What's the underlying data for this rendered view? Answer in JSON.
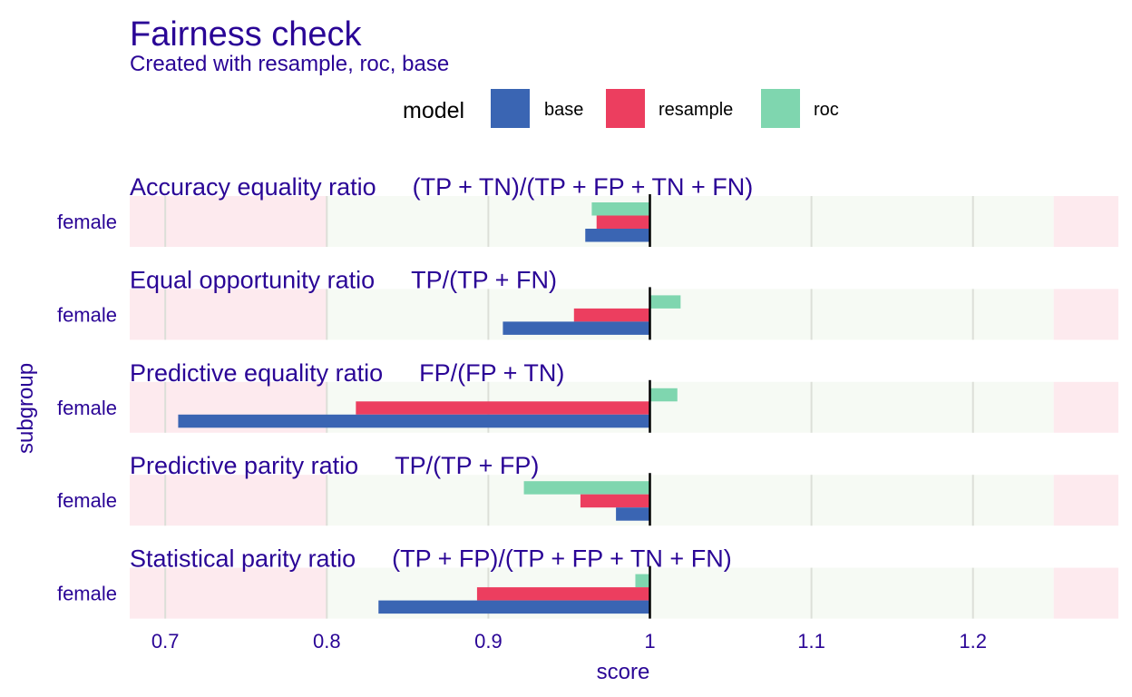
{
  "chart_data": {
    "type": "bar",
    "orientation": "horizontal",
    "title": "Fairness check",
    "subtitle": "Created with resample, roc, base",
    "xlabel": "score",
    "ylabel": "subgroup",
    "xlim": [
      0.678,
      1.29
    ],
    "xticks": [
      0.7,
      0.8,
      0.9,
      1,
      1.1,
      1.2
    ],
    "xtick_labels": [
      "0.7",
      "0.8",
      "0.9",
      "1",
      "1.1",
      "1.2"
    ],
    "reference_line": 1,
    "acceptable_range": [
      0.8,
      1.25
    ],
    "colors": {
      "fair_zone": "#f6faf4",
      "unfair_zone": "#fdeaee",
      "grid": "#dcdfd8",
      "reference": "#000000",
      "text": "#2a0596"
    },
    "legend": {
      "title": "model",
      "position": "top",
      "items": [
        {
          "label": "base",
          "color": "#3a65b3"
        },
        {
          "label": "resample",
          "color": "#ec3e5f"
        },
        {
          "label": "roc",
          "color": "#7fd6af"
        }
      ]
    },
    "panels": [
      {
        "metric": "Accuracy equality ratio",
        "formula": "(TP + TN)/(TP + FP + TN + FN)",
        "subgroup": "female",
        "values": {
          "roc": 0.964,
          "resample": 0.967,
          "base": 0.96
        }
      },
      {
        "metric": "Equal opportunity ratio",
        "formula": "TP/(TP + FN)",
        "subgroup": "female",
        "values": {
          "roc": 1.019,
          "resample": 0.953,
          "base": 0.909
        }
      },
      {
        "metric": "Predictive equality ratio",
        "formula": "FP/(FP + TN)",
        "subgroup": "female",
        "values": {
          "roc": 1.017,
          "resample": 0.818,
          "base": 0.708
        }
      },
      {
        "metric": "Predictive parity ratio",
        "formula": "TP/(TP + FP)",
        "subgroup": "female",
        "values": {
          "roc": 0.922,
          "resample": 0.957,
          "base": 0.979
        }
      },
      {
        "metric": "Statistical parity ratio",
        "formula": "(TP + FP)/(TP + FP + TN + FN)",
        "subgroup": "female",
        "values": {
          "roc": 0.991,
          "resample": 0.893,
          "base": 0.832
        }
      }
    ]
  }
}
